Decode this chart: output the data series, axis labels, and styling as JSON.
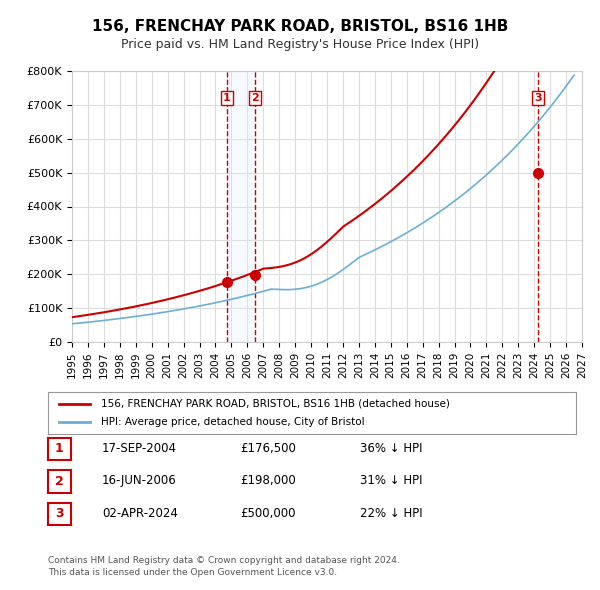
{
  "title": "156, FRENCHAY PARK ROAD, BRISTOL, BS16 1HB",
  "subtitle": "Price paid vs. HM Land Registry's House Price Index (HPI)",
  "xlabel": "",
  "ylabel": "",
  "ylim": [
    0,
    800000
  ],
  "yticks": [
    0,
    100000,
    200000,
    300000,
    400000,
    500000,
    600000,
    700000,
    800000
  ],
  "ytick_labels": [
    "£0",
    "£100K",
    "£200K",
    "£300K",
    "£400K",
    "£500K",
    "£600K",
    "£700K",
    "£800K"
  ],
  "xlim_start": 1995.0,
  "xlim_end": 2027.0,
  "xtick_years": [
    1995,
    1996,
    1997,
    1998,
    1999,
    2000,
    2001,
    2002,
    2003,
    2004,
    2005,
    2006,
    2007,
    2008,
    2009,
    2010,
    2011,
    2012,
    2013,
    2014,
    2015,
    2016,
    2017,
    2018,
    2019,
    2020,
    2021,
    2022,
    2023,
    2024,
    2025,
    2026,
    2027
  ],
  "hpi_color": "#6baed6",
  "price_color": "#cc0000",
  "sale_marker_color": "#cc0000",
  "grid_color": "#dddddd",
  "background_color": "#ffffff",
  "sale_points": [
    {
      "date_x": 2004.71,
      "value": 176500,
      "label": "1"
    },
    {
      "date_x": 2006.46,
      "value": 198000,
      "label": "2"
    },
    {
      "date_x": 2024.25,
      "value": 500000,
      "label": "3"
    }
  ],
  "vline_color": "#cc0000",
  "vband_color": "#ddeeff",
  "legend_entries": [
    "156, FRENCHAY PARK ROAD, BRISTOL, BS16 1HB (detached house)",
    "HPI: Average price, detached house, City of Bristol"
  ],
  "table_rows": [
    {
      "num": "1",
      "date": "17-SEP-2004",
      "price": "£176,500",
      "hpi": "36% ↓ HPI"
    },
    {
      "num": "2",
      "date": "16-JUN-2006",
      "price": "£198,000",
      "hpi": "31% ↓ HPI"
    },
    {
      "num": "3",
      "date": "02-APR-2024",
      "price": "£500,000",
      "hpi": "22% ↓ HPI"
    }
  ],
  "footnote1": "Contains HM Land Registry data © Crown copyright and database right 2024.",
  "footnote2": "This data is licensed under the Open Government Licence v3.0."
}
